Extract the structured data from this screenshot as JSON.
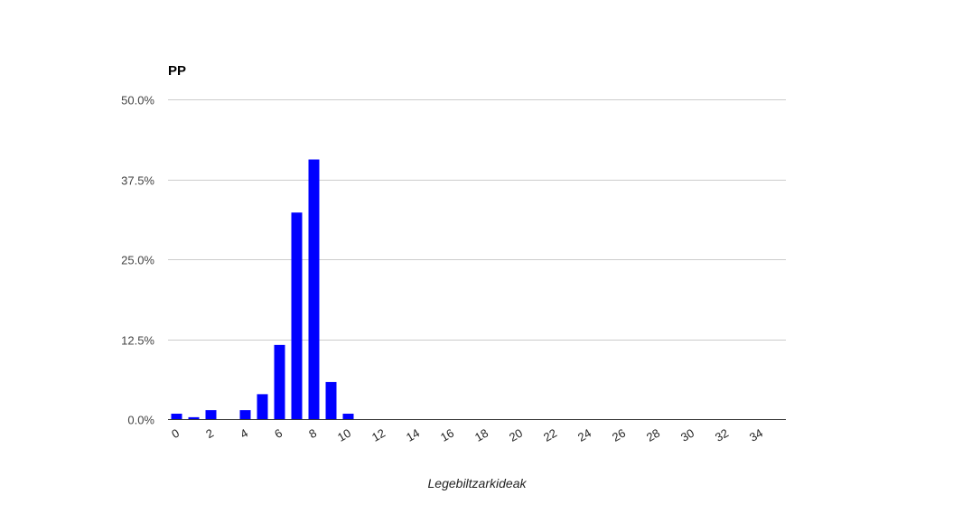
{
  "chart_data": {
    "type": "bar",
    "title": "PP",
    "xlabel": "Legebiltzarkideak",
    "ylabel": "",
    "x": [
      0,
      1,
      2,
      3,
      4,
      5,
      6,
      7,
      8,
      9,
      10
    ],
    "values": [
      0.85,
      0.3,
      1.4,
      0,
      1.4,
      3.9,
      11.6,
      32.3,
      40.6,
      5.8,
      0.85
    ],
    "value_unit": "percent",
    "xlim": [
      -0.5,
      35.5
    ],
    "ylim": [
      0,
      50
    ],
    "x_ticks": [
      "0",
      "2",
      "4",
      "6",
      "8",
      "10",
      "12",
      "14",
      "16",
      "18",
      "20",
      "22",
      "24",
      "26",
      "28",
      "30",
      "32",
      "34"
    ],
    "y_ticks": [
      "0.0%",
      "12.5%",
      "25.0%",
      "37.5%",
      "50.0%"
    ],
    "grid": true,
    "legend": "none",
    "bar_color": "#0000ff",
    "grid_color": "#cccccc"
  }
}
